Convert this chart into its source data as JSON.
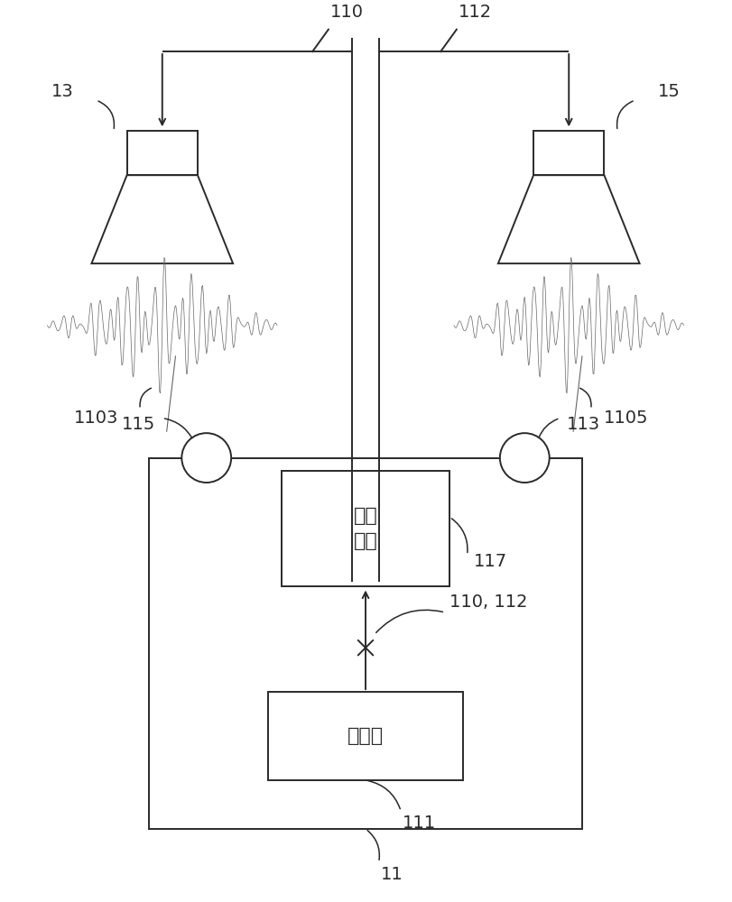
{
  "bg_color": "#ffffff",
  "line_color": "#2a2a2a",
  "text_color": "#2a2a2a",
  "fig_width": 8.11,
  "fig_height": 10.0,
  "output_module_text": "输出\n模块",
  "processor_text": "处理器",
  "label_110": "110",
  "label_112": "112",
  "label_13": "13",
  "label_15": "15",
  "label_1103": "1103",
  "label_1105": "1105",
  "label_115": "115",
  "label_113": "113",
  "label_117": "117",
  "label_110_112": "110, 112",
  "label_111": "111",
  "label_11": "11"
}
